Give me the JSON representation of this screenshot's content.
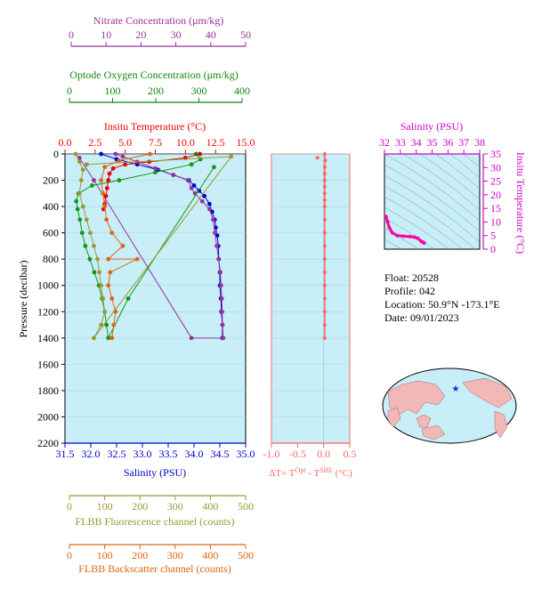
{
  "chart_data": [
    {
      "type": "line",
      "name": "main-profile",
      "y_axis": {
        "label": "Pressure (decibar)",
        "range": [
          0,
          2200
        ],
        "ticks": [
          0,
          200,
          400,
          600,
          800,
          1000,
          1200,
          1400,
          1600,
          1800,
          2000,
          2200
        ],
        "reversed": true
      },
      "x_axes": [
        {
          "id": "nitrate",
          "label": "Nitrate Concentration (μm/kg)",
          "color": "#993399",
          "range": [
            0,
            50
          ],
          "ticks": [
            0,
            10,
            20,
            30,
            40,
            50
          ]
        },
        {
          "id": "oxygen",
          "label": "Optode Oxygen Concentration (μm/kg)",
          "color": "#118811",
          "range": [
            0,
            400
          ],
          "ticks": [
            0,
            100,
            200,
            300,
            400
          ]
        },
        {
          "id": "temperature",
          "label": "Insitu Temperature (°C)",
          "color": "#ee0000",
          "range": [
            0,
            15
          ],
          "ticks": [
            "0.0",
            "2.5",
            "5.0",
            "7.5",
            "10.0",
            "12.5",
            "15.0"
          ]
        },
        {
          "id": "salinity",
          "label": "Salinity (PSU)",
          "color": "#0000cc",
          "range": [
            31.5,
            35.0
          ],
          "ticks": [
            "31.5",
            "32.0",
            "32.5",
            "33.0",
            "33.5",
            "34.0",
            "34.5",
            "35.0"
          ]
        },
        {
          "id": "fluorescence",
          "label": "FLBB Fluorescence channel (counts)",
          "color": "#999933",
          "range": [
            0,
            500
          ],
          "ticks": [
            0,
            100,
            200,
            300,
            400,
            500
          ]
        },
        {
          "id": "backscatter",
          "label": "FLBB Backscatter channel (counts)",
          "color": "#dd6611",
          "range": [
            0,
            500
          ],
          "ticks": [
            0,
            100,
            200,
            300,
            400,
            500
          ]
        }
      ],
      "series": [
        {
          "name": "Salinity (PSU)",
          "axis": "salinity",
          "color": "#0000dd",
          "points": [
            [
              32.2,
              0
            ],
            [
              32.5,
              40
            ],
            [
              32.9,
              80
            ],
            [
              33.3,
              120
            ],
            [
              33.6,
              160
            ],
            [
              33.9,
              200
            ],
            [
              34.0,
              240
            ],
            [
              34.1,
              280
            ],
            [
              34.2,
              320
            ],
            [
              34.3,
              380
            ],
            [
              34.35,
              440
            ],
            [
              34.4,
              500
            ],
            [
              34.42,
              560
            ],
            [
              34.45,
              620
            ],
            [
              34.47,
              700
            ],
            [
              34.48,
              800
            ],
            [
              34.5,
              900
            ],
            [
              34.5,
              1000
            ],
            [
              34.52,
              1100
            ],
            [
              34.53,
              1200
            ],
            [
              34.55,
              1300
            ],
            [
              34.55,
              1400
            ]
          ]
        },
        {
          "name": "Nitrate",
          "axis": "nitrate",
          "color": "#993399",
          "points": [
            [
              14,
              0
            ],
            [
              16,
              20
            ],
            [
              20,
              60
            ],
            [
              25,
              110
            ],
            [
              30,
              160
            ],
            [
              34,
              200
            ],
            [
              35,
              260
            ],
            [
              36,
              300
            ],
            [
              38,
              360
            ],
            [
              40,
              420
            ],
            [
              41,
              500
            ],
            [
              41.5,
              600
            ],
            [
              42,
              700
            ],
            [
              42.5,
              800
            ],
            [
              43,
              900
            ],
            [
              43.2,
              1000
            ],
            [
              43.4,
              1100
            ],
            [
              43.5,
              1200
            ],
            [
              43.6,
              1300
            ],
            [
              43.8,
              1400
            ],
            [
              35,
              1400
            ],
            [
              8,
              200
            ],
            [
              4,
              30
            ]
          ]
        },
        {
          "name": "Oxygen",
          "axis": "oxygen",
          "color": "#119911",
          "points": [
            [
              290,
              0
            ],
            [
              300,
              40
            ],
            [
              280,
              80
            ],
            [
              200,
              140
            ],
            [
              120,
              200
            ],
            [
              60,
              240
            ],
            [
              30,
              300
            ],
            [
              25,
              360
            ],
            [
              28,
              420
            ],
            [
              33,
              500
            ],
            [
              38,
              600
            ],
            [
              45,
              700
            ],
            [
              55,
              800
            ],
            [
              65,
              900
            ],
            [
              75,
              1000
            ],
            [
              82,
              1100
            ],
            [
              88,
              1200
            ],
            [
              92,
              1300
            ],
            [
              96,
              1400
            ],
            [
              140,
              1100
            ],
            [
              330,
              100
            ]
          ]
        },
        {
          "name": "Temperature",
          "axis": "temperature",
          "color": "#ee0000",
          "points": [
            [
              11.2,
              0
            ],
            [
              10,
              30
            ],
            [
              7,
              60
            ],
            [
              5,
              80
            ],
            [
              4,
              110
            ],
            [
              3.7,
              150
            ],
            [
              3.6,
              200
            ],
            [
              3.5,
              260
            ],
            [
              3.4,
              320
            ],
            [
              3.3,
              380
            ],
            [
              3.2,
              420
            ]
          ]
        },
        {
          "name": "Fluorescence",
          "axis": "fluorescence",
          "color": "#999933",
          "points": [
            [
              30,
              0
            ],
            [
              40,
              60
            ],
            [
              50,
              120
            ],
            [
              45,
              200
            ],
            [
              40,
              300
            ],
            [
              50,
              400
            ],
            [
              60,
              500
            ],
            [
              70,
              600
            ],
            [
              80,
              700
            ],
            [
              90,
              800
            ],
            [
              95,
              900
            ],
            [
              100,
              1000
            ],
            [
              105,
              1100
            ],
            [
              110,
              1200
            ],
            [
              100,
              1300
            ],
            [
              80,
              1400
            ],
            [
              460,
              20
            ],
            [
              60,
              80
            ]
          ]
        },
        {
          "name": "Backscatter",
          "axis": "backscatter",
          "color": "#dd6611",
          "points": [
            [
              235,
              0
            ],
            [
              150,
              50
            ],
            [
              110,
              100
            ],
            [
              100,
              200
            ],
            [
              105,
              300
            ],
            [
              110,
              400
            ],
            [
              115,
              500
            ],
            [
              130,
              600
            ],
            [
              160,
              700
            ],
            [
              120,
              800
            ],
            [
              200,
              800
            ],
            [
              125,
              900
            ],
            [
              120,
              1000
            ],
            [
              130,
              1100
            ],
            [
              140,
              1200
            ],
            [
              135,
              1300
            ],
            [
              130,
              1400
            ]
          ]
        }
      ]
    },
    {
      "type": "line",
      "name": "delta-t",
      "x_axis": {
        "label": "ΔT= T^Opt - T^SBE (°C)",
        "range": [
          -1.0,
          0.5
        ],
        "ticks": [
          "-1.0",
          "-0.5",
          "0.0",
          "0.5"
        ]
      },
      "series": [
        {
          "name": "ΔT",
          "color": "#ff6666",
          "points": [
            [
              -0.12,
              30
            ],
            [
              0.02,
              0
            ],
            [
              0.03,
              50
            ],
            [
              0.02,
              100
            ],
            [
              0.02,
              150
            ],
            [
              0.02,
              200
            ],
            [
              0.02,
              250
            ],
            [
              0.02,
              300
            ],
            [
              0.02,
              350
            ],
            [
              0.02,
              400
            ],
            [
              0.02,
              500
            ],
            [
              0.02,
              600
            ],
            [
              0.02,
              700
            ],
            [
              0.02,
              800
            ],
            [
              0.02,
              900
            ],
            [
              0.02,
              1000
            ],
            [
              0.02,
              1100
            ],
            [
              0.02,
              1200
            ],
            [
              0.02,
              1300
            ],
            [
              0.02,
              1400
            ]
          ]
        }
      ]
    },
    {
      "type": "scatter",
      "name": "ts-diagram",
      "x_axis": {
        "label": "Salinity (PSU)",
        "range": [
          32,
          38
        ],
        "ticks": [
          "32",
          "33",
          "34",
          "35",
          "36",
          "37",
          "38"
        ]
      },
      "y_axis": {
        "label": "Insitu Temperature (°C)",
        "range": [
          0,
          35
        ],
        "ticks": [
          "0",
          "5",
          "10",
          "15",
          "20",
          "25",
          "30",
          "35"
        ]
      },
      "series": [
        {
          "name": "T-S",
          "color": "#ff00aa",
          "points": [
            [
              32.1,
              12
            ],
            [
              32.2,
              10
            ],
            [
              32.3,
              8
            ],
            [
              32.5,
              6
            ],
            [
              32.8,
              5
            ],
            [
              33.2,
              4.8
            ],
            [
              33.6,
              4.6
            ],
            [
              33.9,
              4.4
            ],
            [
              34.1,
              4
            ],
            [
              34.3,
              3
            ],
            [
              34.4,
              2.6
            ],
            [
              34.5,
              2.3
            ]
          ]
        }
      ]
    }
  ],
  "info": {
    "float": "Float:  20528",
    "profile": "Profile:  042",
    "location": "Location:  50.9°N  -173.1°E",
    "date": "Date:  09/01/2023"
  },
  "map": {
    "marker_label": "float-location",
    "marker_color": "#2222dd",
    "ocean_color": "#c8eef8",
    "land_color": "#f2b8b8"
  }
}
